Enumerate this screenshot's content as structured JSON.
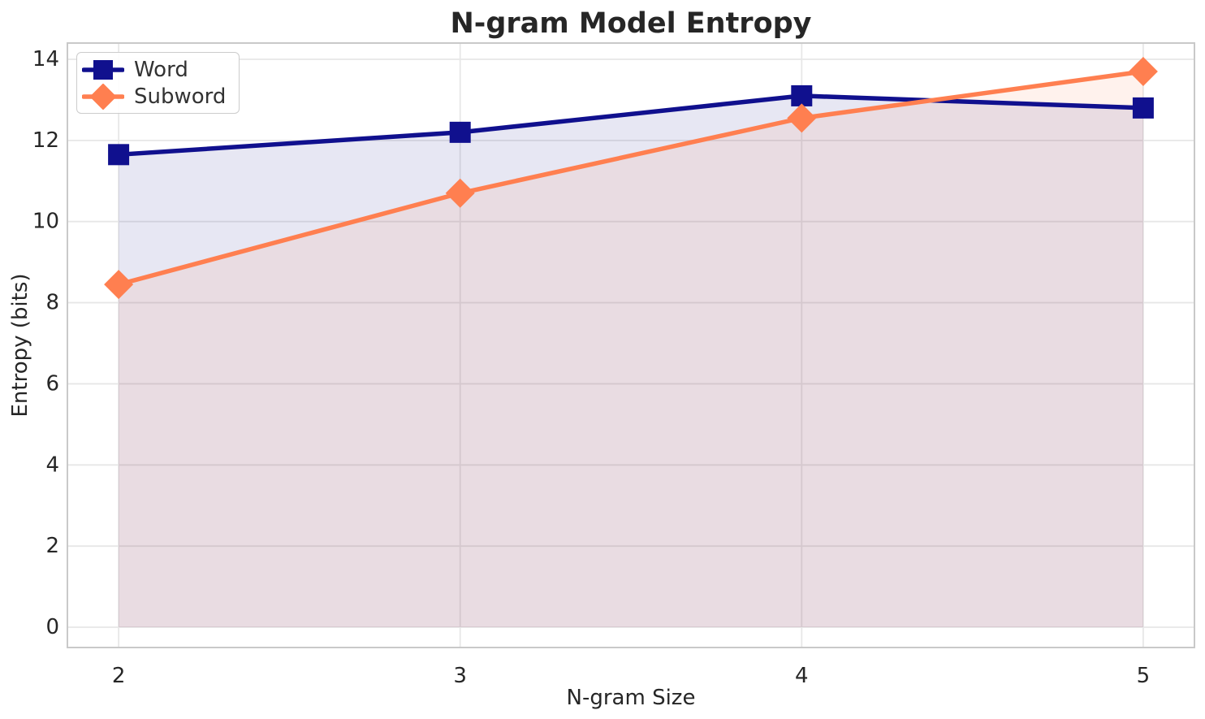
{
  "chart_data": {
    "type": "line",
    "title": "N-gram Model Entropy",
    "xlabel": "N-gram Size",
    "ylabel": "Entropy (bits)",
    "x": [
      2,
      3,
      4,
      5
    ],
    "series": [
      {
        "name": "Word",
        "values": [
          11.65,
          12.2,
          13.1,
          12.8
        ],
        "color": "#10108e",
        "marker": "square"
      },
      {
        "name": "Subword",
        "values": [
          8.45,
          10.7,
          12.55,
          13.7
        ],
        "color": "#ff7f50",
        "marker": "diamond"
      }
    ],
    "xticks": [
      2,
      3,
      4,
      5
    ],
    "yticks": [
      0,
      2,
      4,
      6,
      8,
      10,
      12,
      14
    ],
    "xlim": [
      1.85,
      5.15
    ],
    "ylim": [
      -0.5,
      14.4
    ],
    "grid": true,
    "area_fill_to_zero": true,
    "fill_alpha": 0.1,
    "legend_position": "upper left",
    "colors": {
      "grid": "#e7e7e7",
      "spine": "#c9c9c9",
      "text": "#262626",
      "legend_text": "#333333",
      "background": "#ffffff"
    }
  }
}
